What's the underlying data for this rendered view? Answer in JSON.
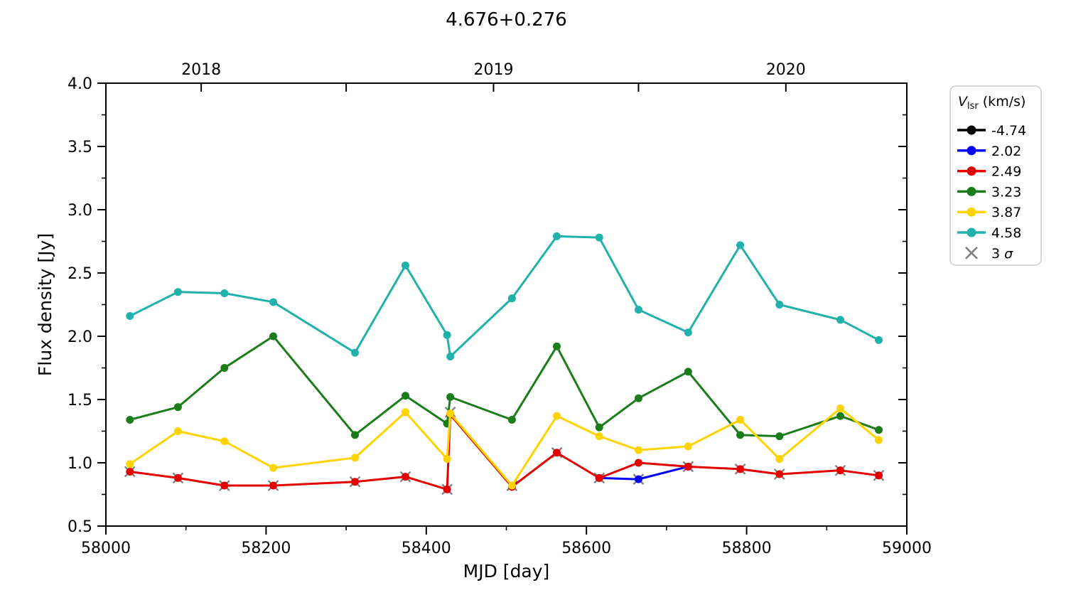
{
  "page": {
    "background": "#ffffff"
  },
  "chart_data": {
    "type": "line",
    "title": "4.676+0.276",
    "xlabel": "MJD [day]",
    "ylabel": "Flux density [Jy]",
    "xlim": [
      58000,
      59000
    ],
    "ylim": [
      0.5,
      4.0
    ],
    "grid": false,
    "x_ticks": [
      58000,
      58200,
      58400,
      58600,
      58800,
      59000
    ],
    "x_minor_ticks": [
      58100,
      58300,
      58500,
      58700,
      58900
    ],
    "y_ticks": [
      0.5,
      1.0,
      1.5,
      2.0,
      2.5,
      3.0,
      3.5,
      4.0
    ],
    "y_minor_step": 0.25,
    "top_axis": {
      "ticks_mjd": [
        58119,
        58300,
        58484,
        58665,
        58849
      ],
      "year_labels": [
        {
          "mjd": 58119,
          "text": "2018"
        },
        {
          "mjd": 58484,
          "text": "2019"
        },
        {
          "mjd": 58849,
          "text": "2020"
        }
      ]
    },
    "legend": {
      "title_symbol": "V",
      "title_sub": "lsr",
      "title_unit": " (km/s)",
      "position": "outside-right"
    },
    "series": [
      {
        "name": "-4.74",
        "color": "#000000",
        "x": [],
        "y": []
      },
      {
        "name": "2.02",
        "color": "#0000ff",
        "x": [
          58616,
          58665,
          58727
        ],
        "y": [
          0.88,
          0.87,
          0.97
        ]
      },
      {
        "name": "2.49",
        "color": "#e50000",
        "x": [
          58030,
          58090,
          58148,
          58209,
          58311,
          58374,
          58426,
          58430,
          58507,
          58563,
          58616,
          58665,
          58727,
          58792,
          58841,
          58917,
          58965
        ],
        "y": [
          0.93,
          0.88,
          0.82,
          0.82,
          0.85,
          0.89,
          0.79,
          1.38,
          0.81,
          1.08,
          0.88,
          1.0,
          0.97,
          0.95,
          0.91,
          0.94,
          0.9
        ]
      },
      {
        "name": "3.23",
        "color": "#1a7d1a",
        "x": [
          58030,
          58090,
          58148,
          58209,
          58311,
          58374,
          58426,
          58430,
          58507,
          58563,
          58616,
          58665,
          58727,
          58792,
          58841,
          58917,
          58965
        ],
        "y": [
          1.34,
          1.44,
          1.75,
          2.0,
          1.22,
          1.53,
          1.31,
          1.52,
          1.34,
          1.92,
          1.28,
          1.51,
          1.72,
          1.22,
          1.21,
          1.37,
          1.26
        ]
      },
      {
        "name": "3.87",
        "color": "#ffd300",
        "x": [
          58030,
          58090,
          58148,
          58209,
          58311,
          58374,
          58426,
          58430,
          58507,
          58563,
          58616,
          58665,
          58727,
          58792,
          58841,
          58917,
          58965
        ],
        "y": [
          0.99,
          1.25,
          1.17,
          0.96,
          1.04,
          1.4,
          1.03,
          1.39,
          0.82,
          1.37,
          1.21,
          1.1,
          1.13,
          1.34,
          1.03,
          1.43,
          1.18
        ]
      },
      {
        "name": "4.58",
        "color": "#20b2aa",
        "x": [
          58030,
          58090,
          58148,
          58209,
          58311,
          58374,
          58426,
          58430,
          58507,
          58563,
          58616,
          58665,
          58727,
          58792,
          58841,
          58917,
          58965
        ],
        "y": [
          2.16,
          2.35,
          2.34,
          2.27,
          1.87,
          2.56,
          2.01,
          1.84,
          2.3,
          2.79,
          2.78,
          2.21,
          2.03,
          2.72,
          2.25,
          2.13,
          1.97
        ]
      }
    ],
    "sigma_markers": {
      "label": "3 σ",
      "sigma_value": "σ",
      "sigma_prefix": "3 ",
      "color": "#808080",
      "x": [
        58030,
        58090,
        58148,
        58209,
        58311,
        58374,
        58426,
        58430,
        58507,
        58563,
        58616,
        58665,
        58727,
        58792,
        58841,
        58917,
        58965
      ],
      "y": [
        0.93,
        0.88,
        0.82,
        0.82,
        0.85,
        0.89,
        0.79,
        1.4,
        0.82,
        1.08,
        0.88,
        0.87,
        0.97,
        0.95,
        0.91,
        0.94,
        0.9
      ]
    }
  }
}
